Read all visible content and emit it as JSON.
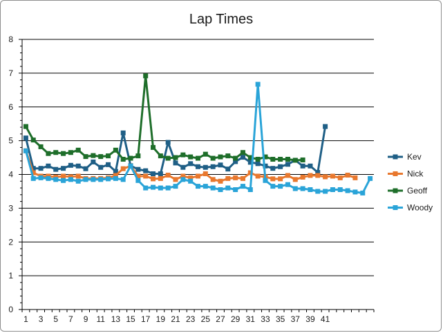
{
  "chart_data": {
    "type": "line",
    "title": "Lap Times",
    "xlabel": "",
    "ylabel": "",
    "ylim": [
      0,
      8
    ],
    "yticks": [
      0,
      1,
      2,
      3,
      4,
      5,
      6,
      7,
      8
    ],
    "xtick_labels": [
      "1",
      "3",
      "5",
      "7",
      "9",
      "11",
      "13",
      "15",
      "17",
      "19",
      "21",
      "23",
      "25",
      "27",
      "29",
      "31",
      "33",
      "35",
      "37",
      "39",
      "41"
    ],
    "x_count": 47,
    "grid": "horizontal",
    "legend_position": "right",
    "series": [
      {
        "name": "Kev",
        "color": "#1f5f86",
        "values": [
          5.08,
          4.18,
          4.18,
          4.25,
          4.15,
          4.18,
          4.27,
          4.25,
          4.17,
          4.37,
          4.21,
          4.29,
          4.09,
          5.23,
          4.26,
          4.15,
          4.11,
          4.02,
          4.02,
          4.95,
          4.34,
          4.21,
          4.32,
          4.23,
          4.21,
          4.23,
          4.28,
          4.16,
          4.38,
          4.51,
          4.36,
          4.32,
          4.25,
          4.18,
          4.23,
          4.3,
          4.42,
          4.25,
          4.25,
          4.06,
          5.42
        ]
      },
      {
        "name": "Nick",
        "color": "#e8782e",
        "values": [
          4.7,
          4.05,
          3.95,
          3.95,
          3.92,
          3.95,
          3.93,
          3.95,
          3.88,
          3.88,
          3.88,
          3.9,
          3.97,
          4.17,
          4.25,
          3.95,
          3.95,
          3.87,
          3.88,
          3.98,
          3.85,
          3.95,
          3.9,
          3.95,
          4.02,
          3.85,
          3.8,
          3.88,
          3.9,
          3.88,
          4.05,
          3.95,
          3.93,
          3.87,
          3.87,
          3.97,
          3.85,
          3.92,
          3.97,
          3.97,
          3.93,
          3.95,
          3.9,
          3.98,
          3.9
        ]
      },
      {
        "name": "Geoff",
        "color": "#1e6e2a",
        "values": [
          5.42,
          5.02,
          4.82,
          4.62,
          4.65,
          4.62,
          4.65,
          4.72,
          4.53,
          4.56,
          4.53,
          4.55,
          4.72,
          4.45,
          4.48,
          4.55,
          6.92,
          4.8,
          4.55,
          4.48,
          4.5,
          4.58,
          4.52,
          4.48,
          4.6,
          4.48,
          4.52,
          4.55,
          4.48,
          4.65,
          4.5,
          4.45,
          4.52,
          4.45,
          4.45,
          4.45,
          4.42,
          4.43
        ]
      },
      {
        "name": "Woody",
        "color": "#2aa4d8",
        "values": [
          4.7,
          3.88,
          3.9,
          3.88,
          3.85,
          3.82,
          3.85,
          3.8,
          3.85,
          3.85,
          3.85,
          3.87,
          3.88,
          3.85,
          4.25,
          3.82,
          3.6,
          3.62,
          3.6,
          3.6,
          3.65,
          3.85,
          3.8,
          3.65,
          3.65,
          3.6,
          3.55,
          3.6,
          3.55,
          3.65,
          3.55,
          6.67,
          3.82,
          3.65,
          3.65,
          3.7,
          3.58,
          3.58,
          3.55,
          3.5,
          3.5,
          3.55,
          3.55,
          3.52,
          3.48,
          3.45,
          3.88
        ]
      }
    ]
  }
}
